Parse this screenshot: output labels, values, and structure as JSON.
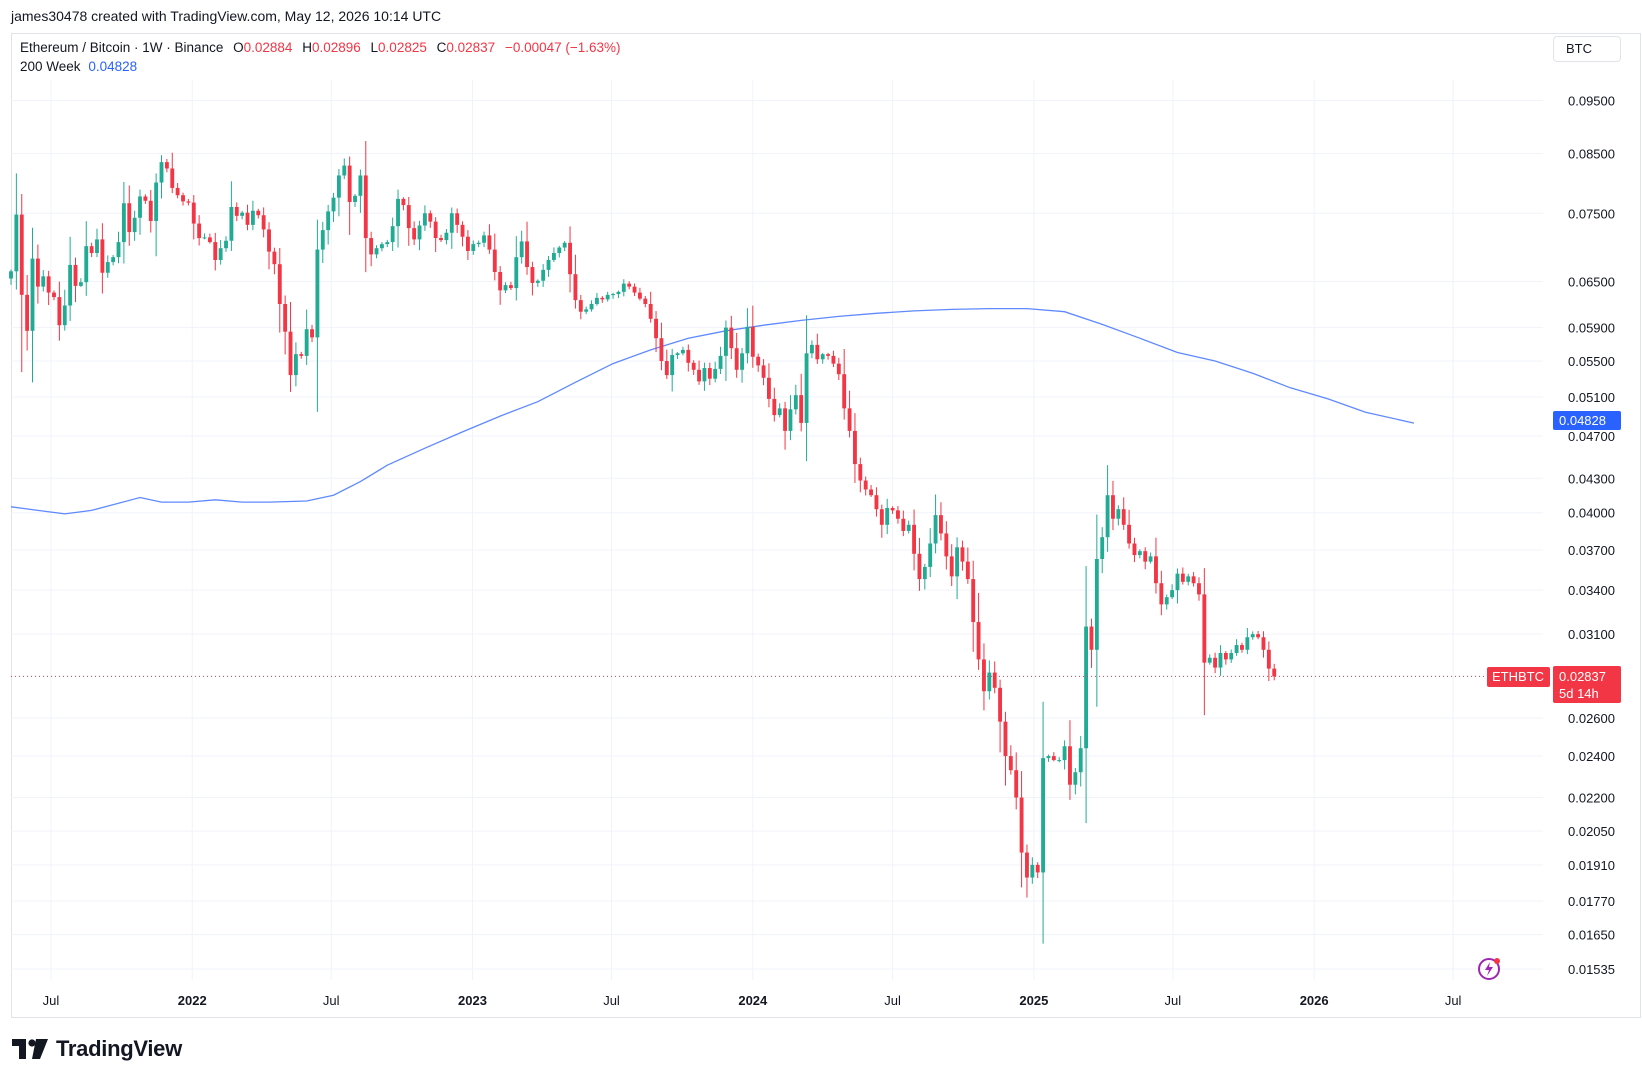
{
  "header": {
    "credit": "james30478 created with TradingView.com, May 12, 2026 10:14 UTC"
  },
  "legend": {
    "symbol_line": "Ethereum / Bitcoin · 1W · Binance",
    "o_label": "O",
    "o_value": "0.02884",
    "h_label": "H",
    "h_value": "0.02896",
    "l_label": "L",
    "l_value": "0.02825",
    "c_label": "C",
    "c_value": "0.02837",
    "change": "−0.00047 (−1.63%)",
    "ma_label": "200 Week",
    "ma_value": "0.04828"
  },
  "currency_button": "BTC",
  "badges": {
    "ma_value": "0.04828",
    "symbol": "ETHBTC",
    "last_price": "0.02837",
    "countdown": "5d 14h"
  },
  "footer": {
    "brand": "TradingView"
  },
  "colors": {
    "up": "#22ab94",
    "down": "#f23645",
    "ma": "#2962ff",
    "grid": "#f0f3fa"
  },
  "chart_data": {
    "type": "candlestick",
    "symbol": "ETHBTC",
    "interval": "1W",
    "exchange": "Binance",
    "scale": "log",
    "ylim": [
      0.01535,
      0.0988
    ],
    "y_ticks": [
      0.095,
      0.085,
      0.075,
      0.065,
      0.059,
      0.055,
      0.051,
      0.047,
      0.043,
      0.04,
      0.037,
      0.034,
      0.031,
      0.026,
      0.024,
      0.022,
      0.0205,
      0.0191,
      0.0177,
      0.0165,
      0.01535
    ],
    "y_tick_labels": [
      "0.09500",
      "0.08500",
      "0.07500",
      "0.06500",
      "0.05900",
      "0.05500",
      "0.05100",
      "0.04700",
      "0.04300",
      "0.04000",
      "0.03700",
      "0.03400",
      "0.03100",
      "0.02600",
      "0.02400",
      "0.02200",
      "0.02050",
      "0.01910",
      "0.01770",
      "0.01650",
      "0.01535"
    ],
    "x_ticks": [
      {
        "date": "2021-07-01",
        "label": "Jul"
      },
      {
        "date": "2022-01-01",
        "label": "2022"
      },
      {
        "date": "2022-07-01",
        "label": "Jul"
      },
      {
        "date": "2023-01-01",
        "label": "2023"
      },
      {
        "date": "2023-07-01",
        "label": "Jul"
      },
      {
        "date": "2024-01-01",
        "label": "2024"
      },
      {
        "date": "2024-07-01",
        "label": "Jul"
      },
      {
        "date": "2025-01-01",
        "label": "2025"
      },
      {
        "date": "2025-07-01",
        "label": "Jul"
      },
      {
        "date": "2026-01-01",
        "label": "2026"
      },
      {
        "date": "2026-07-01",
        "label": "Jul"
      }
    ],
    "x_range": [
      "2021-05-10",
      "2026-10-26"
    ],
    "last_close": 0.02837,
    "ma_series": {
      "name": "200 Week",
      "points": [
        [
          "2021-05-10",
          0.0405
        ],
        [
          "2021-06-14",
          0.0402
        ],
        [
          "2021-07-19",
          0.0399
        ],
        [
          "2021-08-23",
          0.0402
        ],
        [
          "2021-09-27",
          0.0408
        ],
        [
          "2021-10-25",
          0.0413
        ],
        [
          "2021-11-22",
          0.0409
        ],
        [
          "2021-12-27",
          0.0409
        ],
        [
          "2022-01-31",
          0.0411
        ],
        [
          "2022-03-07",
          0.0409
        ],
        [
          "2022-04-11",
          0.0409
        ],
        [
          "2022-05-30",
          0.041
        ],
        [
          "2022-07-04",
          0.0415
        ],
        [
          "2022-08-08",
          0.0427
        ],
        [
          "2022-09-12",
          0.0442
        ],
        [
          "2022-10-31",
          0.0458
        ],
        [
          "2022-12-19",
          0.0474
        ],
        [
          "2023-02-06",
          0.049
        ],
        [
          "2023-03-27",
          0.0505
        ],
        [
          "2023-05-15",
          0.0526
        ],
        [
          "2023-07-03",
          0.0547
        ],
        [
          "2023-08-21",
          0.0563
        ],
        [
          "2023-10-09",
          0.0577
        ],
        [
          "2023-11-27",
          0.0586
        ],
        [
          "2024-01-15",
          0.0593
        ],
        [
          "2024-03-04",
          0.0599
        ],
        [
          "2024-04-22",
          0.0604
        ],
        [
          "2024-06-10",
          0.0608
        ],
        [
          "2024-07-29",
          0.0611
        ],
        [
          "2024-09-16",
          0.0613
        ],
        [
          "2024-11-04",
          0.0614
        ],
        [
          "2024-12-23",
          0.0614
        ],
        [
          "2025-02-10",
          0.061
        ],
        [
          "2025-03-31",
          0.0594
        ],
        [
          "2025-05-19",
          0.0577
        ],
        [
          "2025-07-07",
          0.056
        ],
        [
          "2025-08-25",
          0.055
        ],
        [
          "2025-10-13",
          0.0536
        ],
        [
          "2025-12-01",
          0.052
        ],
        [
          "2026-01-19",
          0.0508
        ],
        [
          "2026-03-09",
          0.0494
        ],
        [
          "2026-05-11",
          0.04828
        ]
      ]
    },
    "candle_series": {
      "start_week": "2021-05-10",
      "weekly_closes": [
        0.0664,
        0.0748,
        0.0632,
        0.0586,
        0.0682,
        0.0643,
        0.0657,
        0.0635,
        0.0629,
        0.0593,
        0.0618,
        0.0673,
        0.0644,
        0.0649,
        0.07,
        0.069,
        0.071,
        0.0662,
        0.0677,
        0.0684,
        0.0706,
        0.0766,
        0.0721,
        0.0743,
        0.0777,
        0.077,
        0.0738,
        0.08,
        0.0835,
        0.0824,
        0.0791,
        0.0779,
        0.0769,
        0.0767,
        0.0734,
        0.0712,
        0.0713,
        0.0706,
        0.068,
        0.0697,
        0.0708,
        0.076,
        0.0746,
        0.0751,
        0.0732,
        0.0754,
        0.0747,
        0.0725,
        0.0692,
        0.0674,
        0.062,
        0.0585,
        0.0534,
        0.0558,
        0.0556,
        0.0588,
        0.0578,
        0.0695,
        0.0724,
        0.0753,
        0.0775,
        0.0812,
        0.0829,
        0.0768,
        0.0778,
        0.0812,
        0.0712,
        0.0688,
        0.0697,
        0.0703,
        0.0706,
        0.073,
        0.0773,
        0.0763,
        0.0727,
        0.071,
        0.0731,
        0.075,
        0.0737,
        0.0712,
        0.0709,
        0.072,
        0.075,
        0.0732,
        0.0714,
        0.0693,
        0.0703,
        0.0705,
        0.0716,
        0.0695,
        0.0663,
        0.0638,
        0.0645,
        0.0641,
        0.0684,
        0.0707,
        0.067,
        0.0648,
        0.0651,
        0.0666,
        0.068,
        0.069,
        0.0698,
        0.0705,
        0.066,
        0.0625,
        0.061,
        0.0613,
        0.062,
        0.0628,
        0.0626,
        0.0632,
        0.0633,
        0.0636,
        0.0647,
        0.0643,
        0.0635,
        0.0627,
        0.062,
        0.0601,
        0.0577,
        0.055,
        0.0534,
        0.0557,
        0.0559,
        0.0563,
        0.0548,
        0.054,
        0.0527,
        0.0542,
        0.053,
        0.0541,
        0.0556,
        0.059,
        0.0565,
        0.054,
        0.0559,
        0.0591,
        0.0555,
        0.0545,
        0.0531,
        0.0508,
        0.0491,
        0.0498,
        0.0475,
        0.0497,
        0.0512,
        0.0483,
        0.0559,
        0.0569,
        0.0552,
        0.0558,
        0.0556,
        0.0547,
        0.0535,
        0.0498,
        0.0475,
        0.0443,
        0.0428,
        0.042,
        0.0415,
        0.0403,
        0.039,
        0.0404,
        0.0402,
        0.0395,
        0.0385,
        0.039,
        0.0367,
        0.0348,
        0.0357,
        0.0375,
        0.0398,
        0.0383,
        0.0365,
        0.035,
        0.0372,
        0.0361,
        0.0348,
        0.0318,
        0.0294,
        0.0275,
        0.0286,
        0.0277,
        0.0258,
        0.024,
        0.0233,
        0.022,
        0.0196,
        0.0186,
        0.0191,
        0.0188,
        0.0239,
        0.024,
        0.0238,
        0.0238,
        0.0245,
        0.0226,
        0.0232,
        0.0244,
        0.0315,
        0.03,
        0.0363,
        0.038,
        0.0415,
        0.0395,
        0.0403,
        0.039,
        0.0375,
        0.0366,
        0.0369,
        0.0361,
        0.0365,
        0.0345,
        0.033,
        0.0335,
        0.034,
        0.0352,
        0.0346,
        0.035,
        0.0345,
        0.0337,
        0.0292,
        0.0295,
        0.0289,
        0.0298,
        0.0294,
        0.0298,
        0.0303,
        0.03,
        0.0308,
        0.031,
        0.0308,
        0.03,
        0.02884,
        0.02837
      ]
    }
  }
}
